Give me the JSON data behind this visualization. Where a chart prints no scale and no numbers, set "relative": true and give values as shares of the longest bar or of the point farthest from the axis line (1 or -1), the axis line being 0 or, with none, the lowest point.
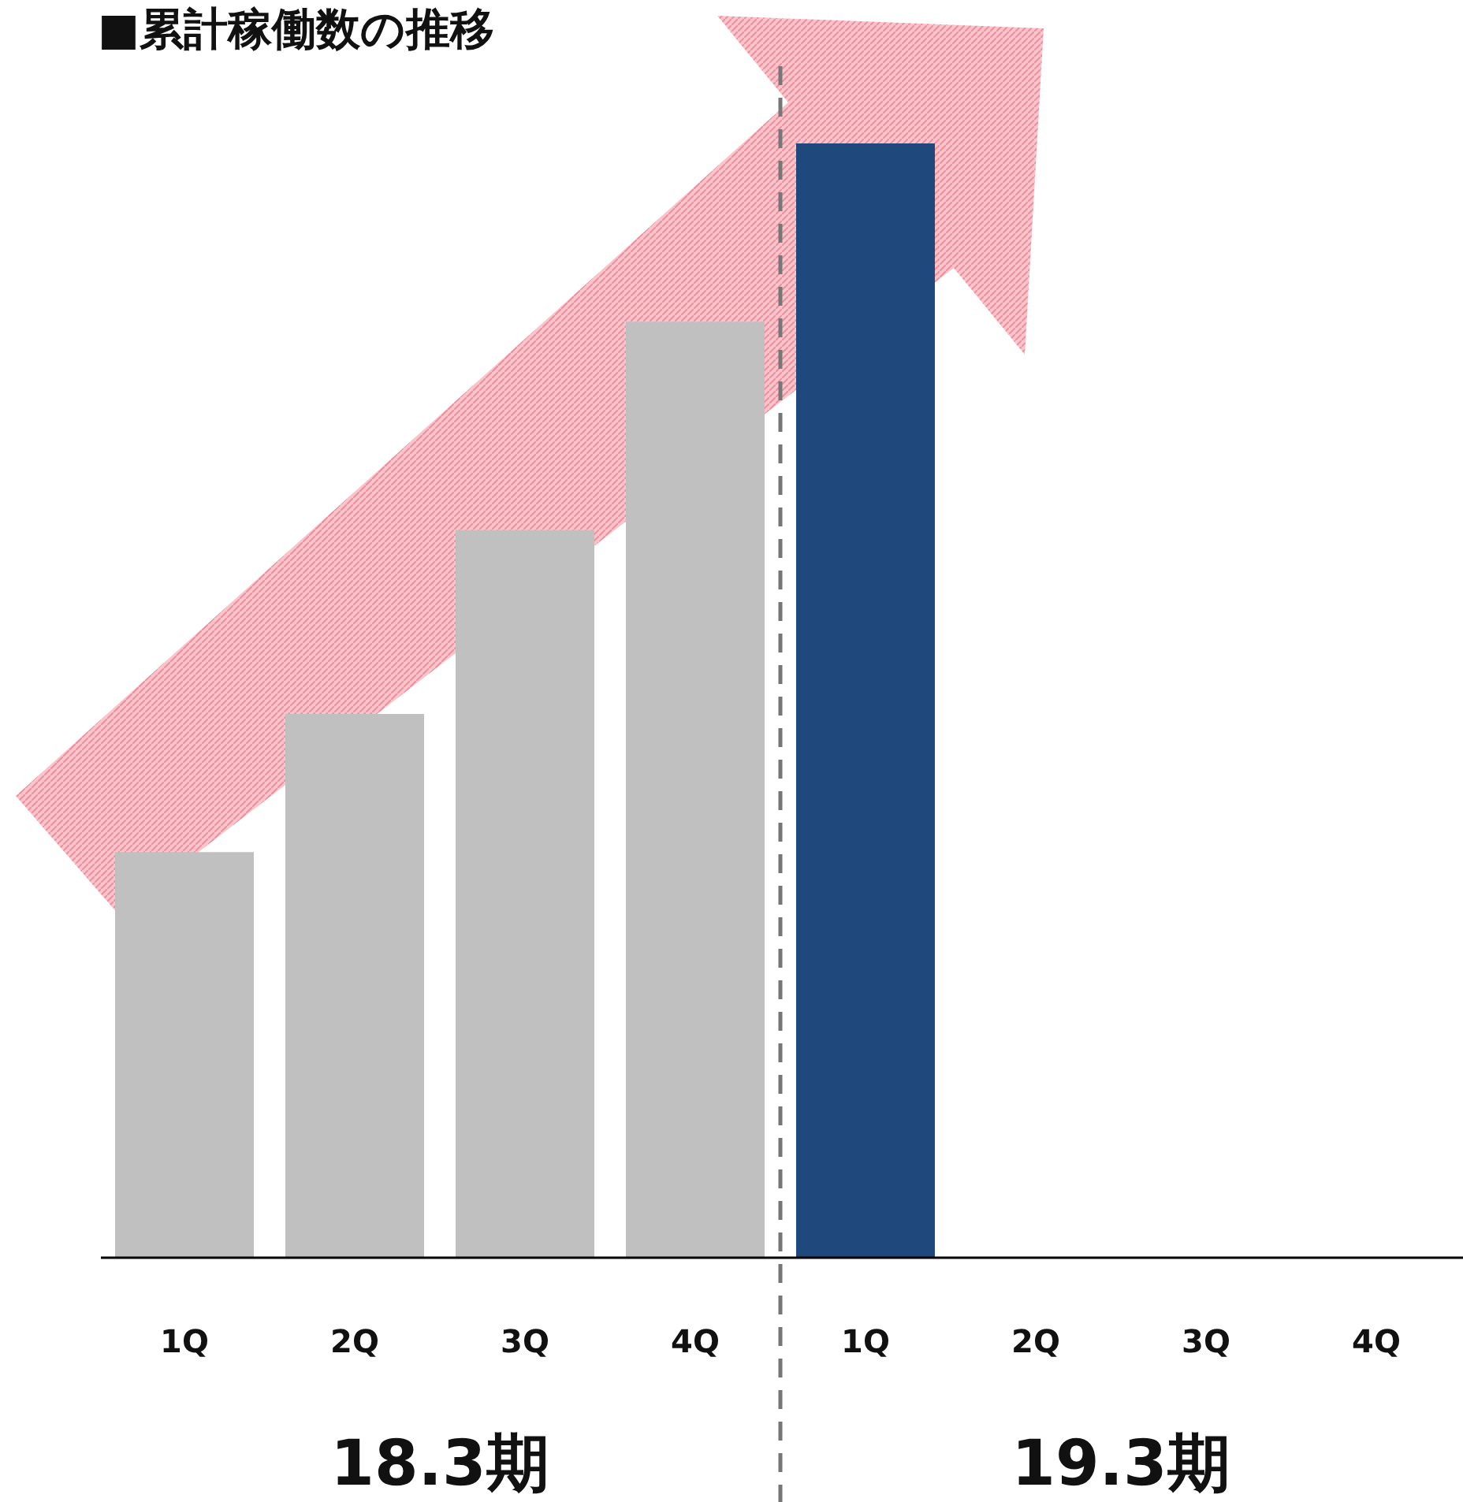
{
  "chart_data": {
    "type": "bar",
    "title": "■累計稼働数の推移",
    "relative": true,
    "categories": [
      "1Q",
      "2Q",
      "3Q",
      "4Q",
      "1Q",
      "2Q",
      "3Q",
      "4Q"
    ],
    "values": [
      0.364,
      0.488,
      0.653,
      0.84,
      1,
      null,
      null,
      null
    ],
    "colors": [
      "#c0c0c0",
      "#c0c0c0",
      "#c0c0c0",
      "#c0c0c0",
      "#1f497d",
      null,
      null,
      null
    ],
    "annotations": [
      "18.3期",
      "19.3期"
    ]
  }
}
